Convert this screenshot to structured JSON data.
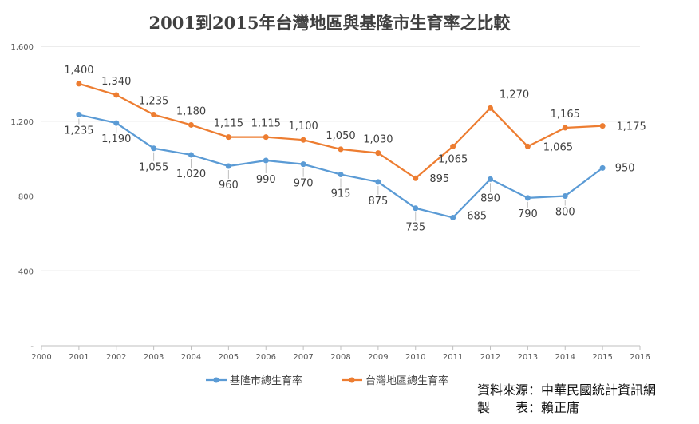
{
  "chart_data": {
    "type": "line",
    "title": "2001到2015年台灣地區與基隆市生育率之比較",
    "x_ticks": [
      "2000",
      "2001",
      "2002",
      "2003",
      "2004",
      "2005",
      "2006",
      "2007",
      "2008",
      "2009",
      "2010",
      "2011",
      "2012",
      "2013",
      "2014",
      "2015",
      "2016"
    ],
    "y_ticks": [
      "-",
      "400",
      "800",
      "1,200",
      "1,600"
    ],
    "x": [
      2001,
      2002,
      2003,
      2004,
      2005,
      2006,
      2007,
      2008,
      2009,
      2010,
      2011,
      2012,
      2013,
      2014,
      2015
    ],
    "xlim": [
      2000,
      2016
    ],
    "ylim": [
      0,
      1600
    ],
    "grid": "horizontal",
    "legend_position": "bottom",
    "series": [
      {
        "name": "基隆市總生育率",
        "color": "#5b9bd5",
        "values": [
          1235,
          1190,
          1055,
          1020,
          960,
          990,
          970,
          915,
          875,
          735,
          685,
          890,
          790,
          800,
          950
        ],
        "labels": [
          "1,235",
          "1,190",
          "1,055",
          "1,020",
          "960",
          "990",
          "970",
          "915",
          "875",
          "735",
          "685",
          "890",
          "790",
          "800",
          "950"
        ]
      },
      {
        "name": "台灣地區總生育率",
        "color": "#ed7d31",
        "values": [
          1400,
          1340,
          1235,
          1180,
          1115,
          1115,
          1100,
          1050,
          1030,
          895,
          1065,
          1270,
          1065,
          1165,
          1175
        ],
        "labels": [
          "1,400",
          "1,340",
          "1,235",
          "1,180",
          "1,115",
          "1,115",
          "1,100",
          "1,050",
          "1,030",
          "895",
          "1,065",
          "1,270",
          "1,065",
          "1,165",
          "1,175"
        ]
      }
    ]
  },
  "source": {
    "line1": "資料來源：中華民國統計資訊網",
    "line2": "製　　表：賴正庸"
  }
}
